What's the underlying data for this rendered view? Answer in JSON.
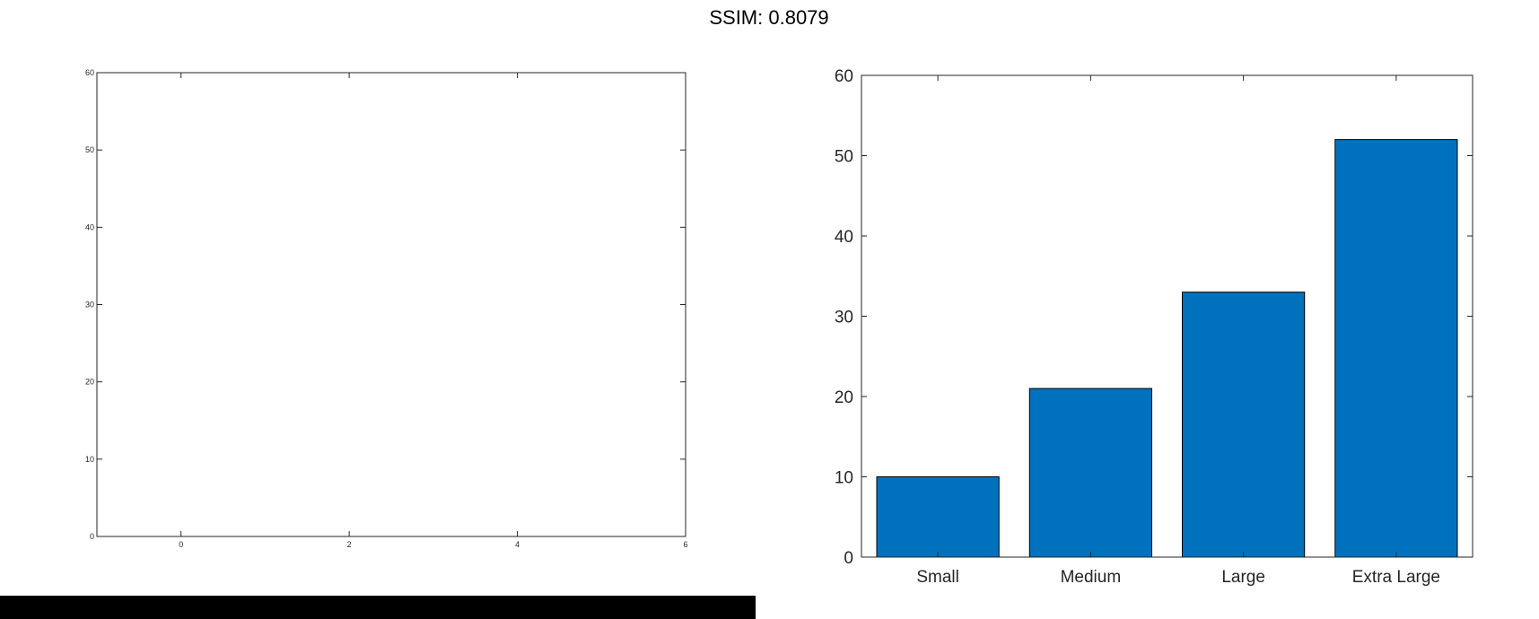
{
  "figure_title": "SSIM: 0.8079",
  "chart_data": [
    {
      "type": "bar",
      "categories": [],
      "values": [],
      "xlim": [
        -1,
        6
      ],
      "ylim": [
        0,
        60
      ],
      "xticks": [
        "0",
        "2",
        "4",
        "6"
      ],
      "yticks": [
        "0",
        "10",
        "20",
        "30",
        "40",
        "50",
        "60"
      ],
      "grid": false,
      "legend": "none"
    },
    {
      "type": "bar",
      "categories": [
        "Small",
        "Medium",
        "Large",
        "Extra Large"
      ],
      "values": [
        10,
        21,
        33,
        52
      ],
      "ylim": [
        0,
        60
      ],
      "yticks": [
        "0",
        "10",
        "20",
        "30",
        "40",
        "50",
        "60"
      ],
      "bar_color": "#0072BD",
      "grid": false,
      "legend": "none"
    }
  ],
  "overlay_color": "#000000"
}
